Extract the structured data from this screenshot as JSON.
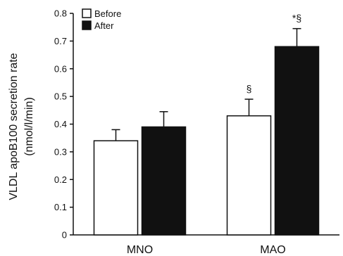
{
  "chart_data": {
    "type": "bar",
    "title": "",
    "ylabel_line1": "VLDL apoB100 secretion rate",
    "ylabel_line2": "(nmol/l/min)",
    "xlabel": "",
    "categories": [
      "MNO",
      "MAO"
    ],
    "series": [
      {
        "name": "Before",
        "values": [
          0.34,
          0.43
        ],
        "errors": [
          0.04,
          0.06
        ],
        "color": "#ffffff"
      },
      {
        "name": "After",
        "values": [
          0.39,
          0.68
        ],
        "errors": [
          0.055,
          0.065
        ],
        "color": "#111111"
      }
    ],
    "annotations": [
      {
        "category": "MAO",
        "series": "Before",
        "text": "§"
      },
      {
        "category": "MAO",
        "series": "After",
        "text": "*§"
      }
    ],
    "ylim": [
      0,
      0.8
    ],
    "yticks": [
      "0",
      "0.1",
      "0.2",
      "0.3",
      "0.4",
      "0.5",
      "0.6",
      "0.7",
      "0.8"
    ],
    "grid": false,
    "legend_position": "top-left"
  }
}
